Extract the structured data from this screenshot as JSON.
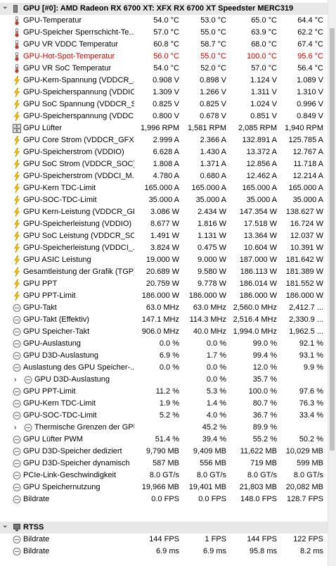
{
  "gpu_section": {
    "title": "GPU [#0]: AMD Radeon RX 6700 XT: XFX RX 6700 XT Speedster MERC319",
    "rows": [
      {
        "icon": "thermometer",
        "label": "GPU-Temperatur",
        "v1": "54.0 °C",
        "v2": "53.0 °C",
        "v3": "65.0 °C",
        "v4": "64.4 °C"
      },
      {
        "icon": "thermometer",
        "label": "GPU-Speicher Sperrschicht-Te...",
        "v1": "57.0 °C",
        "v2": "55.0 °C",
        "v3": "63.9 °C",
        "v4": "62.2 °C"
      },
      {
        "icon": "thermometer",
        "label": "GPU VR VDDC Temperatur",
        "v1": "60.8 °C",
        "v2": "58.7 °C",
        "v3": "68.0 °C",
        "v4": "67.4 °C"
      },
      {
        "icon": "thermometer",
        "label": "GPU-Hot-Spot-Temperatur",
        "v1": "56.0 °C",
        "v2": "55.0 °C",
        "v3": "100.0 °C",
        "v4": "95.6 °C",
        "hot": true
      },
      {
        "icon": "thermometer",
        "label": "GPU VR SoC Temperatur",
        "v1": "54.0 °C",
        "v2": "52.0 °C",
        "v3": "57.0 °C",
        "v4": "56.4 °C"
      },
      {
        "icon": "bolt",
        "label": "GPU-Kern-Spannung (VDDCR_...",
        "v1": "0.908 V",
        "v2": "0.898 V",
        "v3": "1.124 V",
        "v4": "1.089 V"
      },
      {
        "icon": "bolt",
        "label": "GPU-Speicherspannung (VDDIO)",
        "v1": "1.309 V",
        "v2": "1.266 V",
        "v3": "1.311 V",
        "v4": "1.310 V"
      },
      {
        "icon": "bolt",
        "label": "GPU SoC Spannung (VDDCR_S...",
        "v1": "0.825 V",
        "v2": "0.825 V",
        "v3": "1.024 V",
        "v4": "0.996 V"
      },
      {
        "icon": "bolt",
        "label": "GPU-Speicherspannung (VDDC...",
        "v1": "0.800 V",
        "v2": "0.678 V",
        "v3": "0.851 V",
        "v4": "0.849 V"
      },
      {
        "icon": "fan",
        "label": "GPU Lüfter",
        "v1": "1,996 RPM",
        "v2": "1,581 RPM",
        "v3": "2,085 RPM",
        "v4": "1,940 RPM"
      },
      {
        "icon": "bolt",
        "label": "GPU Core Strom (VDDCR_GFX)",
        "v1": "2.999 A",
        "v2": "2.366 A",
        "v3": "132.891 A",
        "v4": "125.785 A"
      },
      {
        "icon": "bolt",
        "label": "GPU-Speicherstrom (VDDIO)",
        "v1": "6.628 A",
        "v2": "1.430 A",
        "v3": "13.372 A",
        "v4": "12.767 A"
      },
      {
        "icon": "bolt",
        "label": "GPU SoC Strom (VDDCR_SOC)",
        "v1": "1.808 A",
        "v2": "1.371 A",
        "v3": "12.856 A",
        "v4": "11.718 A"
      },
      {
        "icon": "bolt",
        "label": "GPU-Speicherstrom (VDDCI_M...",
        "v1": "4.780 A",
        "v2": "0.680 A",
        "v3": "12.462 A",
        "v4": "12.214 A"
      },
      {
        "icon": "bolt",
        "label": "GPU-Kern TDC-Limit",
        "v1": "165.000 A",
        "v2": "165.000 A",
        "v3": "165.000 A",
        "v4": "165.000 A"
      },
      {
        "icon": "bolt",
        "label": "GPU-SOC-TDC-Limit",
        "v1": "35.000 A",
        "v2": "35.000 A",
        "v3": "35.000 A",
        "v4": "35.000 A"
      },
      {
        "icon": "bolt",
        "label": "GPU Kern-Leistung (VDDCR_GFX)",
        "v1": "3.086 W",
        "v2": "2.434 W",
        "v3": "147.354 W",
        "v4": "138.627 W"
      },
      {
        "icon": "bolt",
        "label": "GPU-Speicherleistung (VDDIO)",
        "v1": "8.677 W",
        "v2": "1.816 W",
        "v3": "17.518 W",
        "v4": "16.724 W"
      },
      {
        "icon": "bolt",
        "label": "GPU SoC Leistung (VDDCR_SOC)",
        "v1": "1.491 W",
        "v2": "1.131 W",
        "v3": "13.364 W",
        "v4": "12.037 W"
      },
      {
        "icon": "bolt",
        "label": "GPU-Speicherleistung (VDDCI_...",
        "v1": "3.824 W",
        "v2": "0.475 W",
        "v3": "10.604 W",
        "v4": "10.391 W"
      },
      {
        "icon": "bolt",
        "label": "GPU ASIC Leistung",
        "v1": "19.000 W",
        "v2": "9.000 W",
        "v3": "187.000 W",
        "v4": "181.642 W"
      },
      {
        "icon": "bolt",
        "label": "Gesamtleistung der Grafik (TGP)",
        "v1": "20.689 W",
        "v2": "9.580 W",
        "v3": "186.113 W",
        "v4": "181.389 W"
      },
      {
        "icon": "bolt",
        "label": "GPU PPT",
        "v1": "20.759 W",
        "v2": "9.778 W",
        "v3": "186.014 W",
        "v4": "181.552 W"
      },
      {
        "icon": "bolt",
        "label": "GPU PPT-Limit",
        "v1": "186.000 W",
        "v2": "186.000 W",
        "v3": "186.000 W",
        "v4": "186.000 W"
      },
      {
        "icon": "clock",
        "label": "GPU-Takt",
        "v1": "63.0 MHz",
        "v2": "63.0 MHz",
        "v3": "2,560.0 MHz",
        "v4": "2,412.7 ..."
      },
      {
        "icon": "clock",
        "label": "GPU-Takt (Effektiv)",
        "v1": "147.1 MHz",
        "v2": "114.3 MHz",
        "v3": "2,516.4 MHz",
        "v4": "2,330.9 ..."
      },
      {
        "icon": "clock",
        "label": "GPU Speicher-Takt",
        "v1": "906.0 MHz",
        "v2": "40.0 MHz",
        "v3": "1,994.0 MHz",
        "v4": "1,962.5 ..."
      },
      {
        "icon": "clock",
        "label": "GPU-Auslastung",
        "v1": "0.0 %",
        "v2": "0.0 %",
        "v3": "99.0 %",
        "v4": "92.1 %"
      },
      {
        "icon": "clock",
        "label": "GPU D3D-Auslastung",
        "v1": "6.9 %",
        "v2": "1.7 %",
        "v3": "99.4 %",
        "v4": "93.1 %"
      },
      {
        "icon": "clock",
        "label": "Auslastung des GPU Speicher-...",
        "v1": "0.0 %",
        "v2": "0.0 %",
        "v3": "12.0 %",
        "v4": "9.9 %"
      },
      {
        "icon": "clock",
        "label": "GPU D3D-Auslastung",
        "v1": "",
        "v2": "0.0 %",
        "v3": "35.7 %",
        "v4": "",
        "expandable": true
      },
      {
        "icon": "clock",
        "label": "GPU PPT-Limit",
        "v1": "11.2 %",
        "v2": "5.3 %",
        "v3": "100.0 %",
        "v4": "97.6 %"
      },
      {
        "icon": "clock",
        "label": "GPU-Kern TDC-Limit",
        "v1": "1.9 %",
        "v2": "1.4 %",
        "v3": "80.7 %",
        "v4": "76.3 %"
      },
      {
        "icon": "clock",
        "label": "GPU-SOC-TDC-Limit",
        "v1": "5.2 %",
        "v2": "4.0 %",
        "v3": "36.7 %",
        "v4": "33.4 %"
      },
      {
        "icon": "clock",
        "label": "Thermische Grenzen der GPU",
        "v1": "",
        "v2": "45.2 %",
        "v3": "89.9 %",
        "v4": "",
        "expandable": true
      },
      {
        "icon": "clock",
        "label": "GPU Lüfter PWM",
        "v1": "51.4 %",
        "v2": "39.4 %",
        "v3": "55.2 %",
        "v4": "50.2 %"
      },
      {
        "icon": "clock",
        "label": "GPU D3D-Speicher dediziert",
        "v1": "9,790 MB",
        "v2": "9,409 MB",
        "v3": "11,622 MB",
        "v4": "10,029 MB"
      },
      {
        "icon": "clock",
        "label": "GPU D3D-Speicher dynamisch",
        "v1": "587 MB",
        "v2": "556 MB",
        "v3": "719 MB",
        "v4": "599 MB"
      },
      {
        "icon": "clock",
        "label": "PCIe-Link-Geschwindigkeit",
        "v1": "8.0 GT/s",
        "v2": "8.0 GT/s",
        "v3": "8.0 GT/s",
        "v4": "8.0 GT/s"
      },
      {
        "icon": "clock",
        "label": "GPU Speichernutzung",
        "v1": "19,966 MB",
        "v2": "19,401 MB",
        "v3": "21,803 MB",
        "v4": "20,082 MB"
      },
      {
        "icon": "clock",
        "label": "Bildrate",
        "v1": "0.0 FPS",
        "v2": "0.0 FPS",
        "v3": "148.0 FPS",
        "v4": "128.7 FPS"
      }
    ]
  },
  "rtss_section": {
    "title": "RTSS",
    "rows": [
      {
        "icon": "clock",
        "label": "Bildrate",
        "v1": "144 FPS",
        "v2": "1 FPS",
        "v3": "144 FPS",
        "v4": "122 FPS"
      },
      {
        "icon": "clock",
        "label": "Bildrate",
        "v1": "6.9 ms",
        "v2": "6.9 ms",
        "v3": "95.8 ms",
        "v4": "8.2 ms"
      }
    ]
  },
  "colors": {
    "header_bg": "#e8e8e8",
    "hot_text": "#d90000",
    "bolt": "#f2c200",
    "thermo": "#c0392b",
    "clock": "#808080"
  }
}
